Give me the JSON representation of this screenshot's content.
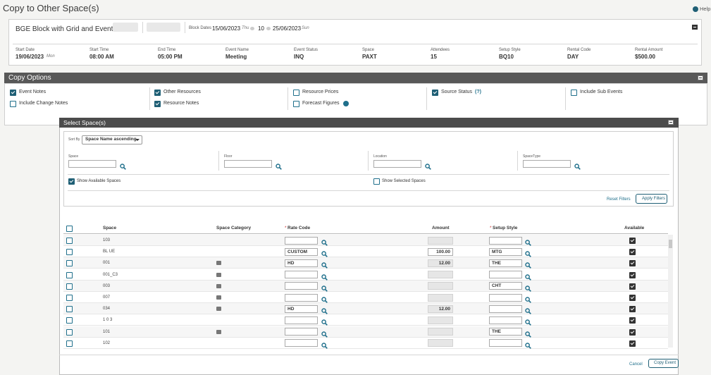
{
  "header": {
    "title": "Copy to Other Space(s)",
    "help": "Help"
  },
  "block": {
    "name": "BGE Block with Grid and Events",
    "dates_label": "Block Dates",
    "start": "15/06/2023",
    "start_day": "Thu",
    "nights": "10",
    "end": "25/06/2023",
    "end_day": "Sun"
  },
  "details": [
    {
      "label": "Start Date",
      "value": "19/06/2023",
      "extra": "Mon"
    },
    {
      "label": "Start Time",
      "value": "08:00 AM"
    },
    {
      "label": "End Time",
      "value": "05:00 PM"
    },
    {
      "label": "Event Name",
      "value": "Meeting"
    },
    {
      "label": "Event Status",
      "value": "INQ"
    },
    {
      "label": "Space",
      "value": "PAXT"
    },
    {
      "label": "Attendees",
      "value": "15"
    },
    {
      "label": "Setup Style",
      "value": "BQ10"
    },
    {
      "label": "Rental Code",
      "value": "DAY"
    },
    {
      "label": "Rental Amount",
      "value": "$500.00"
    }
  ],
  "copy_options": {
    "title": "Copy Options",
    "options": [
      [
        {
          "label": "Event Notes",
          "checked": true
        },
        {
          "label": "Include Change Notes",
          "checked": false
        }
      ],
      [
        {
          "label": "Other Resources",
          "checked": true
        },
        {
          "label": "Resource Notes",
          "checked": true
        }
      ],
      [
        {
          "label": "Resource Prices",
          "checked": false
        },
        {
          "label": "Forecast Figures",
          "checked": false,
          "info": true
        }
      ],
      [
        {
          "label": "Source Status",
          "checked": true,
          "hint": "(?)"
        }
      ],
      [
        {
          "label": "Include Sub Events",
          "checked": false
        }
      ]
    ]
  },
  "select_spaces": {
    "title": "Select Space(s)",
    "sort_label": "Sort By",
    "sort_value": "Space Name ascending",
    "filters": [
      "Space",
      "Floor",
      "Location",
      "SpaceType"
    ],
    "show_available": {
      "label": "Show Available Spaces",
      "checked": true
    },
    "show_selected": {
      "label": "Show Selected Spaces",
      "checked": false
    },
    "reset": "Reset Filters",
    "apply": "Apply Filters"
  },
  "table": {
    "columns": [
      {
        "label": "Space"
      },
      {
        "label": "Space Category"
      },
      {
        "label": "Rate Code",
        "mark": "*"
      },
      {
        "label": "Amount"
      },
      {
        "label": "Setup Style",
        "mark": "*"
      },
      {
        "label": "Available"
      }
    ],
    "rows": [
      {
        "space": "103",
        "category": false,
        "rate_code": null,
        "amount": null,
        "amount_editable": false,
        "setup_style": null,
        "available": true
      },
      {
        "space": "BL UE",
        "category": false,
        "rate_code": "CUSTOM",
        "amount": "100.00",
        "amount_editable": true,
        "setup_style": "MTG",
        "available": true
      },
      {
        "space": "001",
        "category": true,
        "rate_code": "HD",
        "amount": "12.00",
        "amount_editable": false,
        "setup_style": "THE",
        "available": true
      },
      {
        "space": "001_C3",
        "category": true,
        "rate_code": null,
        "amount": null,
        "amount_editable": false,
        "setup_style": null,
        "available": true
      },
      {
        "space": "003",
        "category": true,
        "rate_code": null,
        "amount": null,
        "amount_editable": false,
        "setup_style": "CHT",
        "available": true
      },
      {
        "space": "007",
        "category": true,
        "rate_code": null,
        "amount": null,
        "amount_editable": false,
        "setup_style": null,
        "available": true
      },
      {
        "space": "034",
        "category": true,
        "rate_code": "HD",
        "amount": "12.00",
        "amount_editable": false,
        "setup_style": null,
        "available": true
      },
      {
        "space": "1 0 3",
        "category": false,
        "rate_code": null,
        "amount": null,
        "amount_editable": false,
        "setup_style": null,
        "available": true
      },
      {
        "space": "101",
        "category": true,
        "rate_code": null,
        "amount": null,
        "amount_editable": false,
        "setup_style": "THE",
        "available": true
      },
      {
        "space": "102",
        "category": false,
        "rate_code": null,
        "amount": null,
        "amount_editable": false,
        "setup_style": null,
        "available": true
      }
    ]
  },
  "footer": {
    "cancel": "Cancel",
    "copy": "Copy Event"
  }
}
